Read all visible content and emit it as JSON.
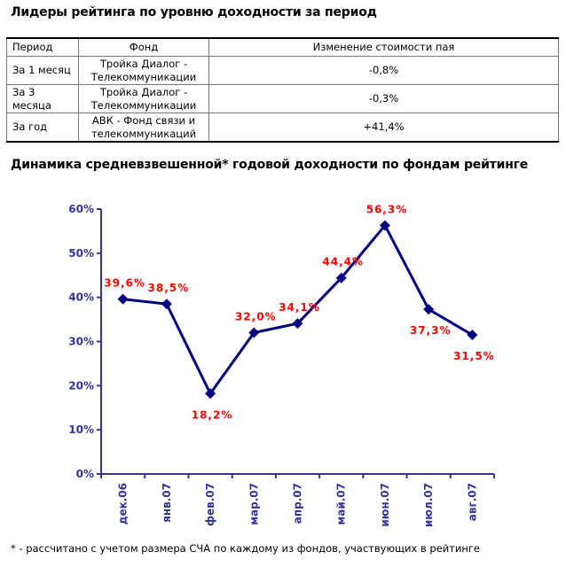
{
  "heading1": "Лидеры рейтинга по уровню доходности за период",
  "table": {
    "headers": [
      "Период",
      "Фонд",
      "Изменение стоимости пая"
    ],
    "rows": [
      {
        "period": "За 1 месяц",
        "fund_line1": "Тройка Диалог -",
        "fund_line2": "Телекоммуникации",
        "change": "-0,8%"
      },
      {
        "period": "За 3 месяца",
        "fund_line1": "Тройка Диалог -",
        "fund_line2": "Телекоммуникации",
        "change": "-0,3%"
      },
      {
        "period": "За год",
        "fund_line1": "АВК - Фонд связи и",
        "fund_line2": "телекоммуникаций",
        "change": "+41,4%"
      }
    ]
  },
  "heading2": "Динамика средневзвешенной* годовой доходности по фондам рейтинге",
  "footnote": "* - рассчитано с учетом размера СЧА по каждому из фондов, участвующих в рейтинге",
  "chart_data": {
    "type": "line",
    "categories": [
      "дек.06",
      "янв.07",
      "фев.07",
      "мар.07",
      "апр.07",
      "май.07",
      "июн.07",
      "июл.07",
      "авг.07"
    ],
    "values": [
      39.6,
      38.5,
      18.2,
      32.0,
      34.1,
      44.4,
      56.3,
      37.3,
      31.5
    ],
    "data_labels": [
      "39,6%",
      "38,5%",
      "18,2%",
      "32,0%",
      "34,1%",
      "44,4%",
      "56,3%",
      "37,3%",
      "31,5%"
    ],
    "yticks": [
      "0%",
      "10%",
      "20%",
      "30%",
      "40%",
      "50%",
      "60%"
    ],
    "ylim": [
      0,
      60
    ],
    "line_color": "#000080",
    "label_color": "#ff0000",
    "axis_color": "#333399",
    "grid": false
  }
}
